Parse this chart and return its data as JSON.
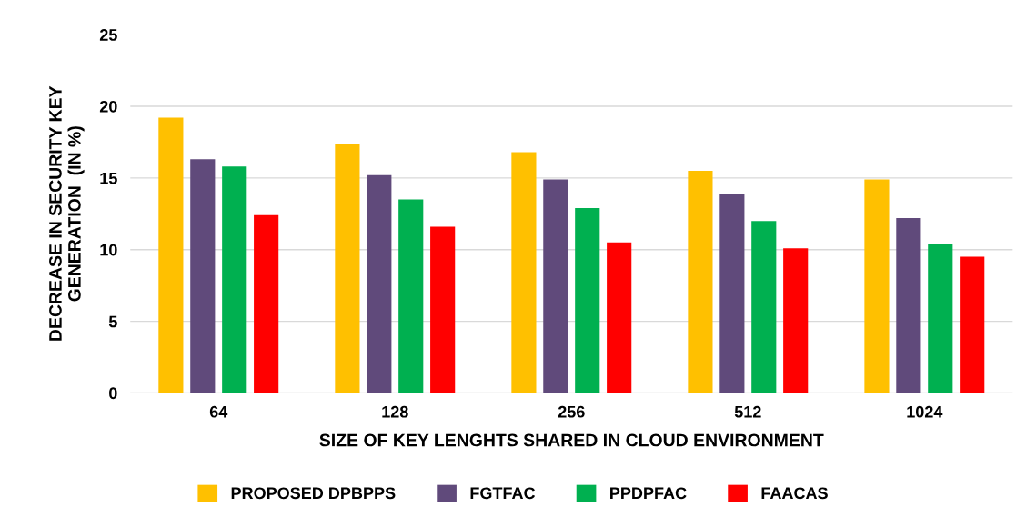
{
  "chart_data": {
    "type": "bar",
    "xlabel": "SIZE OF KEY LENGHTS SHARED IN CLOUD ENVIRONMENT",
    "ylabel": "DECREASE IN SECURITY KEY\nGENERATION  (IN %)",
    "categories": [
      "64",
      "128",
      "256",
      "512",
      "1024"
    ],
    "series": [
      {
        "name": "PROPOSED DPBPPS",
        "color": "#ffc000",
        "values": [
          19.2,
          17.4,
          16.8,
          15.5,
          14.9
        ]
      },
      {
        "name": "FGTFAC",
        "color": "#604a7b",
        "values": [
          16.3,
          15.2,
          14.9,
          13.9,
          12.2
        ]
      },
      {
        "name": "PPDPFAC",
        "color": "#00b050",
        "values": [
          15.8,
          13.5,
          12.9,
          12.0,
          10.4
        ]
      },
      {
        "name": "FAACAS",
        "color": "#ff0000",
        "values": [
          12.4,
          11.6,
          10.5,
          10.1,
          9.5
        ]
      }
    ],
    "ylim": [
      0,
      25
    ],
    "yticks": [
      0,
      5,
      10,
      15,
      20,
      25
    ],
    "grid": "y",
    "legend": "bottom"
  }
}
